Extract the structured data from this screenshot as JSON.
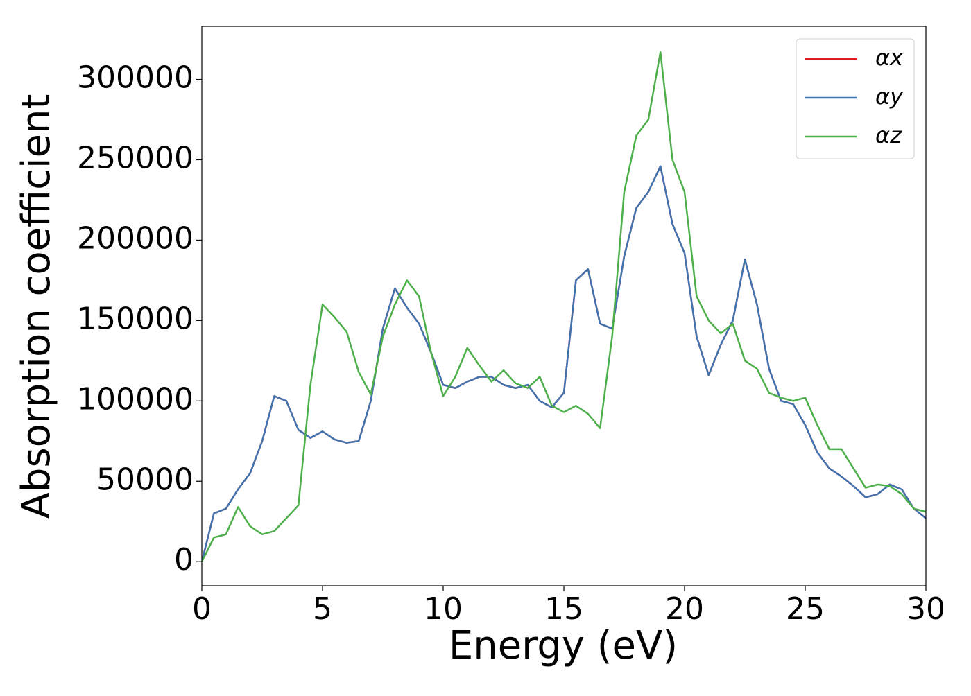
{
  "chart_data": {
    "type": "line",
    "xlabel": "Energy (eV)",
    "ylabel": "Absorption coefficient",
    "x": [
      0,
      0.5,
      1,
      1.5,
      2,
      2.5,
      3,
      3.5,
      4,
      4.5,
      5,
      5.5,
      6,
      6.5,
      7,
      7.5,
      8,
      8.5,
      9,
      9.5,
      10,
      10.5,
      11,
      11.5,
      12,
      12.5,
      13,
      13.5,
      14,
      14.5,
      15,
      15.5,
      16,
      16.5,
      17,
      17.5,
      18,
      18.5,
      19,
      19.5,
      20,
      20.5,
      21,
      21.5,
      22,
      22.5,
      23,
      23.5,
      24,
      24.5,
      25,
      25.5,
      26,
      26.5,
      27,
      27.5,
      28,
      28.5,
      29,
      29.5,
      30
    ],
    "series": [
      {
        "name": "αx",
        "color": "#e41a1c",
        "values": [
          0,
          30000,
          33000,
          45000,
          55000,
          75000,
          103000,
          100000,
          82000,
          77000,
          81000,
          76000,
          74000,
          75000,
          100000,
          145000,
          170000,
          158000,
          148000,
          130000,
          110000,
          108000,
          112000,
          115000,
          115000,
          110000,
          108000,
          110000,
          100000,
          96000,
          105000,
          175000,
          182000,
          148000,
          145000,
          190000,
          220000,
          230000,
          246000,
          210000,
          192000,
          140000,
          116000,
          135000,
          150000,
          188000,
          160000,
          120000,
          100000,
          98000,
          85000,
          68000,
          58000,
          53000,
          47000,
          40000,
          42000,
          48000,
          45000,
          33000,
          27000
        ]
      },
      {
        "name": "αy",
        "color": "#3f74b1",
        "values": [
          0,
          30000,
          33000,
          45000,
          55000,
          75000,
          103000,
          100000,
          82000,
          77000,
          81000,
          76000,
          74000,
          75000,
          100000,
          145000,
          170000,
          158000,
          148000,
          130000,
          110000,
          108000,
          112000,
          115000,
          115000,
          110000,
          108000,
          110000,
          100000,
          96000,
          105000,
          175000,
          182000,
          148000,
          145000,
          190000,
          220000,
          230000,
          246000,
          210000,
          192000,
          140000,
          116000,
          135000,
          150000,
          188000,
          160000,
          120000,
          100000,
          98000,
          85000,
          68000,
          58000,
          53000,
          47000,
          40000,
          42000,
          48000,
          45000,
          33000,
          27000
        ]
      },
      {
        "name": "αz",
        "color": "#4daf4a",
        "values": [
          0,
          15000,
          17000,
          34000,
          22000,
          17000,
          19000,
          27000,
          35000,
          110000,
          160000,
          152000,
          143000,
          118000,
          104000,
          140000,
          160000,
          175000,
          165000,
          130000,
          103000,
          115000,
          133000,
          122000,
          112000,
          119000,
          111000,
          108000,
          115000,
          97000,
          93000,
          97000,
          92000,
          83000,
          140000,
          230000,
          265000,
          275000,
          317000,
          250000,
          230000,
          165000,
          150000,
          142000,
          148000,
          125000,
          120000,
          105000,
          102000,
          100000,
          102000,
          85000,
          70000,
          70000,
          58000,
          46000,
          48000,
          47000,
          42000,
          33000,
          31000
        ]
      }
    ],
    "xlim": [
      0,
      30
    ],
    "xticks": [
      0,
      5,
      10,
      15,
      20,
      25,
      30
    ],
    "ylim": [
      -15000,
      333000
    ],
    "yticks": [
      0,
      50000,
      100000,
      150000,
      200000,
      250000,
      300000
    ],
    "legend": "upper right"
  }
}
